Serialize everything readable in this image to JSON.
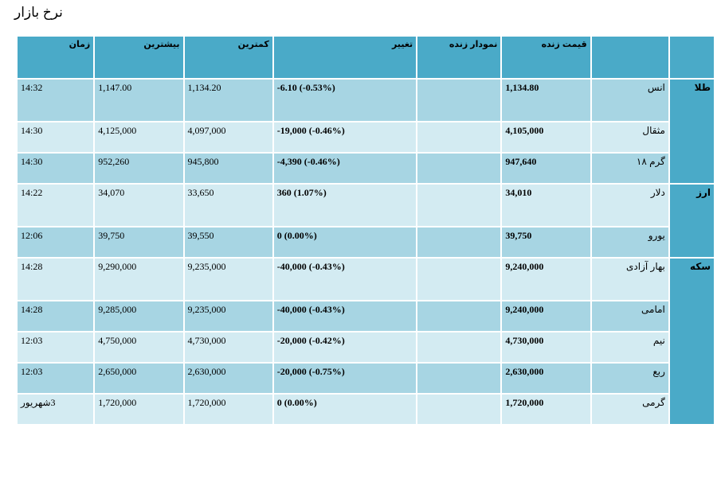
{
  "title": "نرخ بازار",
  "headers": {
    "group": "",
    "name": "",
    "live_price": "قیمت زنده",
    "live_chart": "نمودار زنده",
    "change": "تغییر",
    "low": "کمترین",
    "high": "بیشترین",
    "time": "زمان"
  },
  "groups": [
    {
      "label": "طلا",
      "rows": [
        {
          "name": "انس",
          "price": "1,134.80",
          "change": "-6.10 (-0.53%)",
          "low": "1,134.20",
          "high": "1,147.00",
          "time": "14:32",
          "tall": true
        },
        {
          "name": "مثقال",
          "price": "4,105,000",
          "change": "-19,000 (-0.46%)",
          "low": "4,097,000",
          "high": "4,125,000",
          "time": "14:30",
          "tall": false
        },
        {
          "name": "گرم ۱۸",
          "price": "947,640",
          "change": "-4,390 (-0.46%)",
          "low": "945,800",
          "high": "952,260",
          "time": "14:30",
          "tall": false
        }
      ]
    },
    {
      "label": "ارز",
      "rows": [
        {
          "name": "دلار",
          "price": "34,010",
          "change": "360 (1.07%)",
          "low": "33,650",
          "high": "34,070",
          "time": "14:22",
          "tall": true
        },
        {
          "name": "یورو",
          "price": "39,750",
          "change": "0 (0.00%)",
          "low": "39,550",
          "high": "39,750",
          "time": "12:06",
          "tall": false
        }
      ]
    },
    {
      "label": "سکه",
      "rows": [
        {
          "name": "بهار آزادی",
          "price": "9,240,000",
          "change": "-40,000 (-0.43%)",
          "low": "9,235,000",
          "high": "9,290,000",
          "time": "14:28",
          "tall": true
        },
        {
          "name": "امامی",
          "price": "9,240,000",
          "change": "-40,000 (-0.43%)",
          "low": "9,235,000",
          "high": "9,285,000",
          "time": "14:28",
          "tall": false
        },
        {
          "name": "نیم",
          "price": "4,730,000",
          "change": "-20,000 (-0.42%)",
          "low": "4,730,000",
          "high": "4,750,000",
          "time": "12:03",
          "tall": false
        },
        {
          "name": "ربع",
          "price": "2,630,000",
          "change": "-20,000 (-0.75%)",
          "low": "2,630,000",
          "high": "2,650,000",
          "time": "12:03",
          "tall": false
        },
        {
          "name": "گرمی",
          "price": "1,720,000",
          "change": "0 (0.00%)",
          "low": "1,720,000",
          "high": "1,720,000",
          "time": "3شهریور",
          "tall": false
        }
      ]
    }
  ],
  "colors": {
    "header": "#4aaac8",
    "row_dark": "#a7d5e3",
    "row_light": "#d3ebf2"
  }
}
